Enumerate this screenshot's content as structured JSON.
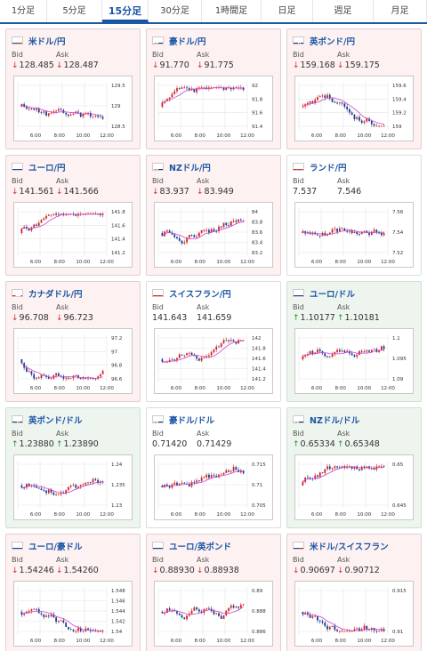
{
  "tabs": [
    {
      "label": "1分足",
      "active": false
    },
    {
      "label": "5分足",
      "active": false
    },
    {
      "label": "15分足",
      "active": true
    },
    {
      "label": "30分足",
      "active": false
    },
    {
      "label": "1時間足",
      "active": false
    },
    {
      "label": "日足",
      "active": false
    },
    {
      "label": "週足",
      "active": false
    },
    {
      "label": "月足",
      "active": false
    }
  ],
  "colors": {
    "accent": "#1a55a5",
    "bull": "#d42020",
    "bear": "#1a3a8c",
    "ma": "#cc44cc",
    "down_arrow": "#d12a2a",
    "up_arrow": "#2a8a2a"
  },
  "cards": [
    {
      "name": "米ドル/円",
      "flag": "us",
      "state": "down",
      "bid_label": "Bid",
      "ask_label": "Ask",
      "bid": "128.485",
      "ask": "128.487",
      "dir": "down",
      "chart": {
        "y_ticks": [
          "129.5",
          "129",
          "128.5"
        ],
        "x_ticks": [
          "6:00",
          "8:00",
          "10:00",
          "12:00"
        ],
        "seed": 11,
        "trend": "down",
        "ma_shape": "down"
      }
    },
    {
      "name": "豪ドル/円",
      "flag": "au",
      "state": "down",
      "bid_label": "Bid",
      "ask_label": "Ask",
      "bid": "91.770",
      "ask": "91.775",
      "dir": "down",
      "chart": {
        "y_ticks": [
          "92",
          "91.8",
          "91.6",
          "91.4"
        ],
        "x_ticks": [
          "6:00",
          "8:00",
          "10:00",
          "12:00"
        ],
        "seed": 23,
        "trend": "up",
        "ma_shape": "up"
      }
    },
    {
      "name": "英ポンド/円",
      "flag": "gb",
      "state": "down",
      "bid_label": "Bid",
      "ask_label": "Ask",
      "bid": "159.168",
      "ask": "159.175",
      "dir": "down",
      "chart": {
        "y_ticks": [
          "159.6",
          "159.4",
          "159.2",
          "159"
        ],
        "x_ticks": [
          "6:00",
          "8:00",
          "10:00",
          "12:00"
        ],
        "seed": 37,
        "trend": "down",
        "ma_shape": "down"
      }
    },
    {
      "name": "ユーロ/円",
      "flag": "eu",
      "state": "down",
      "bid_label": "Bid",
      "ask_label": "Ask",
      "bid": "141.561",
      "ask": "141.566",
      "dir": "down",
      "chart": {
        "y_ticks": [
          "141.8",
          "141.6",
          "141.4",
          "141.2"
        ],
        "x_ticks": [
          "6:00",
          "8:00",
          "10:00",
          "12:00"
        ],
        "seed": 41,
        "trend": "up",
        "ma_shape": "up"
      }
    },
    {
      "name": "NZドル/円",
      "flag": "nz",
      "state": "down",
      "bid_label": "Bid",
      "ask_label": "Ask",
      "bid": "83.937",
      "ask": "83.949",
      "dir": "down",
      "chart": {
        "y_ticks": [
          "84",
          "83.8",
          "83.6",
          "83.4",
          "83.2"
        ],
        "x_ticks": [
          "6:00",
          "8:00",
          "10:00",
          "12:00"
        ],
        "seed": 53,
        "trend": "up",
        "ma_shape": "up"
      }
    },
    {
      "name": "ランド/円",
      "flag": "za",
      "state": "flat",
      "bid_label": "Bid",
      "ask_label": "Ask",
      "bid": "7.537",
      "ask": "7.546",
      "dir": "none",
      "chart": {
        "y_ticks": [
          "7.56",
          "7.54",
          "7.52"
        ],
        "x_ticks": [
          "6:00",
          "8:00",
          "10:00",
          "12:00"
        ],
        "seed": 67,
        "trend": "flat",
        "ma_shape": "up"
      }
    },
    {
      "name": "カナダドル/円",
      "flag": "ca",
      "state": "down",
      "bid_label": "Bid",
      "ask_label": "Ask",
      "bid": "96.708",
      "ask": "96.723",
      "dir": "down",
      "chart": {
        "y_ticks": [
          "97.2",
          "97",
          "96.8",
          "96.6"
        ],
        "x_ticks": [
          "6:00",
          "8:00",
          "10:00",
          "12:00"
        ],
        "seed": 71,
        "trend": "down",
        "ma_shape": "down"
      }
    },
    {
      "name": "スイスフラン/円",
      "flag": "ch",
      "state": "flat",
      "bid_label": "Bid",
      "ask_label": "Ask",
      "bid": "141.643",
      "ask": "141.659",
      "dir": "none",
      "chart": {
        "y_ticks": [
          "142",
          "141.8",
          "141.6",
          "141.4",
          "141.2"
        ],
        "x_ticks": [
          "6:00",
          "8:00",
          "10:00",
          "12:00"
        ],
        "seed": 83,
        "trend": "up",
        "ma_shape": "up"
      }
    },
    {
      "name": "ユーロ/ドル",
      "flag": "eu",
      "state": "up",
      "bid_label": "Bid",
      "ask_label": "Ask",
      "bid": "1.10177",
      "ask": "1.10181",
      "dir": "up",
      "chart": {
        "y_ticks": [
          "1.1",
          "1.095",
          "1.09"
        ],
        "x_ticks": [
          "6:00",
          "8:00",
          "10:00",
          "12:00"
        ],
        "seed": 97,
        "trend": "up",
        "ma_shape": "up"
      }
    },
    {
      "name": "英ポンド/ドル",
      "flag": "gb",
      "state": "up",
      "bid_label": "Bid",
      "ask_label": "Ask",
      "bid": "1.23880",
      "ask": "1.23890",
      "dir": "up",
      "chart": {
        "y_ticks": [
          "1.24",
          "1.235",
          "1.23"
        ],
        "x_ticks": [
          "6:00",
          "8:00",
          "10:00",
          "12:00"
        ],
        "seed": 101,
        "trend": "up",
        "ma_shape": "up"
      }
    },
    {
      "name": "豪ドル/ドル",
      "flag": "au",
      "state": "flat",
      "bid_label": "Bid",
      "ask_label": "Ask",
      "bid": "0.71420",
      "ask": "0.71429",
      "dir": "none",
      "chart": {
        "y_ticks": [
          "0.715",
          "0.71",
          "0.705"
        ],
        "x_ticks": [
          "6:00",
          "8:00",
          "10:00",
          "12:00"
        ],
        "seed": 113,
        "trend": "up",
        "ma_shape": "up"
      }
    },
    {
      "name": "NZドル/ドル",
      "flag": "nz",
      "state": "up",
      "bid_label": "Bid",
      "ask_label": "Ask",
      "bid": "0.65334",
      "ask": "0.65348",
      "dir": "up",
      "chart": {
        "y_ticks": [
          "0.65",
          "0.645"
        ],
        "x_ticks": [
          "6:00",
          "8:00",
          "10:00",
          "12:00"
        ],
        "seed": 127,
        "trend": "up",
        "ma_shape": "up"
      }
    },
    {
      "name": "ユーロ/豪ドル",
      "flag": "eu",
      "state": "down",
      "bid_label": "Bid",
      "ask_label": "Ask",
      "bid": "1.54246",
      "ask": "1.54260",
      "dir": "down",
      "chart": {
        "y_ticks": [
          "1.548",
          "1.546",
          "1.544",
          "1.542",
          "1.54"
        ],
        "x_ticks": [
          "6:00",
          "8:00",
          "10:00",
          "12:00"
        ],
        "seed": 131,
        "trend": "down",
        "ma_shape": "down"
      }
    },
    {
      "name": "ユーロ/英ポンド",
      "flag": "eu",
      "state": "down",
      "bid_label": "Bid",
      "ask_label": "Ask",
      "bid": "0.88930",
      "ask": "0.88938",
      "dir": "down",
      "chart": {
        "y_ticks": [
          "0.89",
          "0.888",
          "0.886"
        ],
        "x_ticks": [
          "6:00",
          "8:00",
          "10:00",
          "12:00"
        ],
        "seed": 137,
        "trend": "up",
        "ma_shape": "up"
      }
    },
    {
      "name": "米ドル/スイスフラン",
      "flag": "us",
      "state": "down",
      "bid_label": "Bid",
      "ask_label": "Ask",
      "bid": "0.90697",
      "ask": "0.90712",
      "dir": "down",
      "chart": {
        "y_ticks": [
          "0.915",
          "0.91"
        ],
        "x_ticks": [
          "6:00",
          "8:00",
          "10:00",
          "12:00"
        ],
        "seed": 149,
        "trend": "down",
        "ma_shape": "down"
      }
    }
  ]
}
